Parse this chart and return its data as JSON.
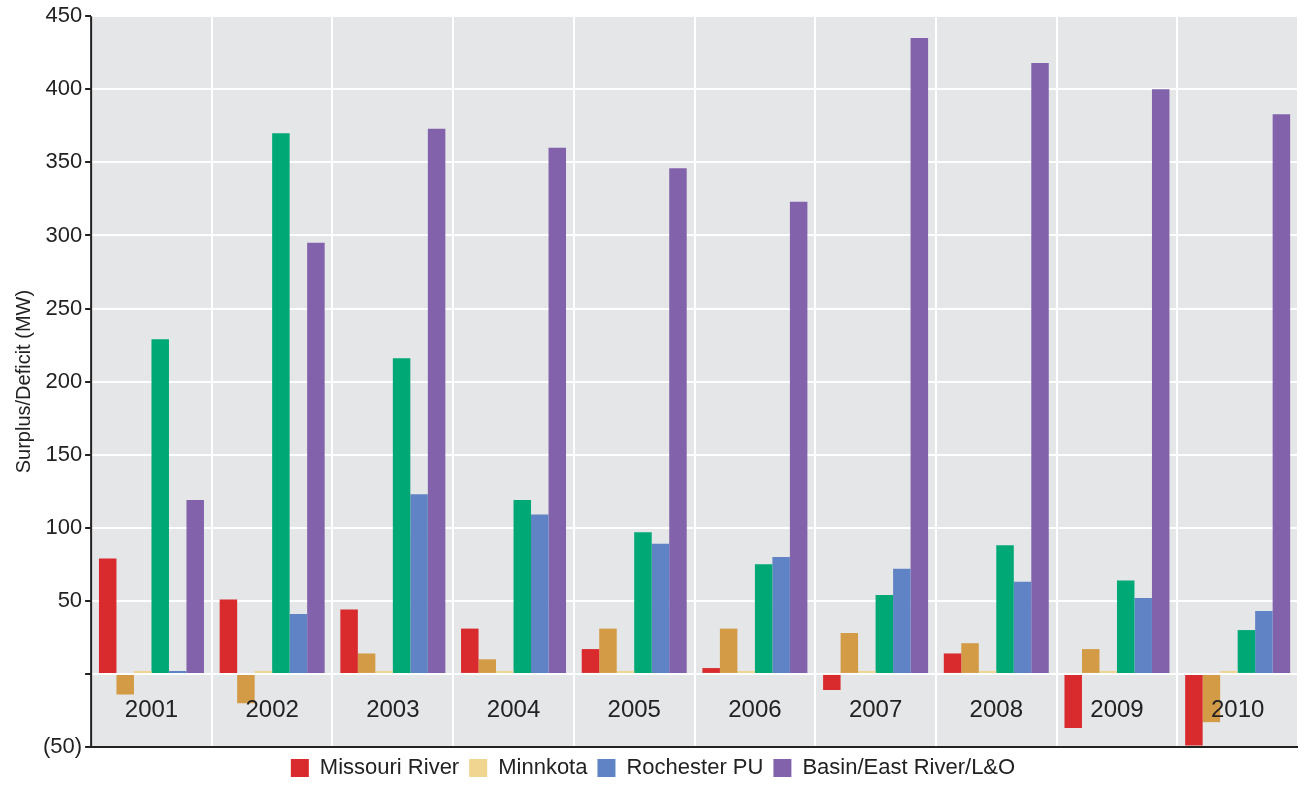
{
  "chart_data": {
    "type": "bar",
    "ylabel": "Surplus/Deficit (MW)",
    "categories": [
      "2001",
      "2002",
      "2003",
      "2004",
      "2005",
      "2006",
      "2007",
      "2008",
      "2009",
      "2010"
    ],
    "series": [
      {
        "name": "Missouri River",
        "color": "#d92b2e",
        "values": [
          79,
          51,
          44,
          31,
          17,
          4,
          -11,
          14,
          -37,
          -49
        ]
      },
      {
        "color": "#d39b45",
        "values": [
          -14,
          -20,
          14,
          10,
          31,
          31,
          28,
          21,
          17,
          -33
        ]
      },
      {
        "name": "Minnkota",
        "color": "#efd58f",
        "values": [
          2,
          2,
          2,
          2,
          2,
          2,
          2,
          2,
          2,
          2
        ]
      },
      {
        "color": "#00a876",
        "values": [
          229,
          370,
          216,
          119,
          97,
          75,
          54,
          88,
          64,
          30
        ]
      },
      {
        "name": "Rochester PU",
        "color": "#5f83c4",
        "values": [
          2,
          41,
          123,
          109,
          89,
          80,
          72,
          63,
          52,
          43
        ]
      },
      {
        "name": "Basin/East River/L&O",
        "color": "#8263ab",
        "values": [
          119,
          295,
          373,
          360,
          346,
          323,
          435,
          418,
          400,
          383
        ]
      }
    ],
    "ylim": [
      -50,
      450
    ],
    "yticks": [
      {
        "value": -50,
        "label": "(50)"
      },
      {
        "value": 0,
        "label": null
      },
      50,
      100,
      150,
      200,
      250,
      300,
      350,
      400,
      450
    ],
    "grid": true,
    "legend": "bottom"
  }
}
